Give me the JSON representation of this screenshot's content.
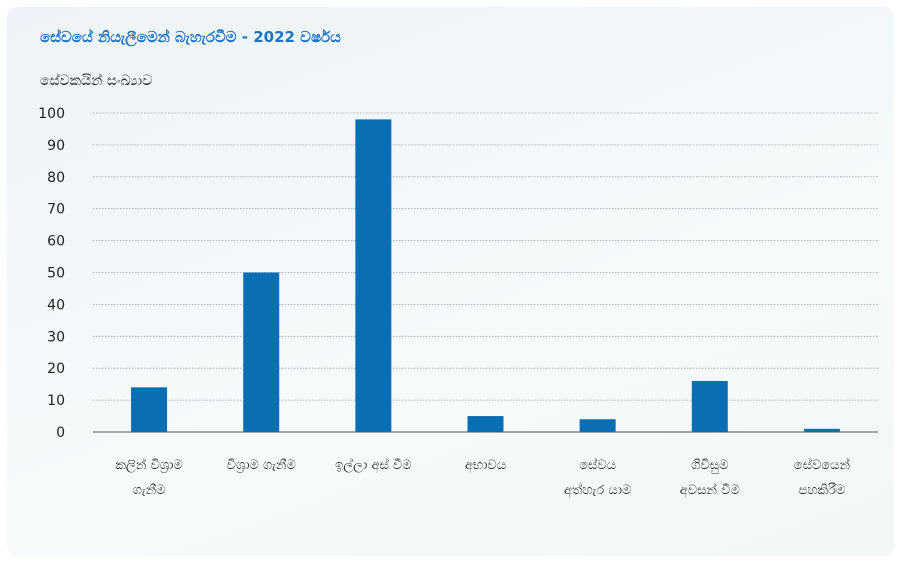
{
  "chart_data": {
    "type": "bar",
    "title": "සේවයේ නියැලීමෙන් බැහැරවීම - 2022 වර්ෂය",
    "ylabel": "සේවකයින් සංඛ්‍යාව",
    "xlabel": "",
    "ylim": [
      0,
      100
    ],
    "yticks": [
      0,
      10,
      20,
      30,
      40,
      50,
      60,
      70,
      80,
      90,
      100
    ],
    "grid": true,
    "color": "#0a6eb4",
    "categories": [
      [
        "කලින් විශ්‍රාම",
        "ගැනීම"
      ],
      [
        "විශ්‍රාම ගැනීම"
      ],
      [
        "ඉල්ලා අස් වීම"
      ],
      [
        "අභාවය"
      ],
      [
        "සේවය",
        "අත්හැර යාම"
      ],
      [
        "ගිවිසුම",
        "අවසන් වීම"
      ],
      [
        "සේවයෙන්",
        "පහකිරීම"
      ]
    ],
    "values": [
      14,
      50,
      98,
      5,
      4,
      16,
      1
    ]
  }
}
